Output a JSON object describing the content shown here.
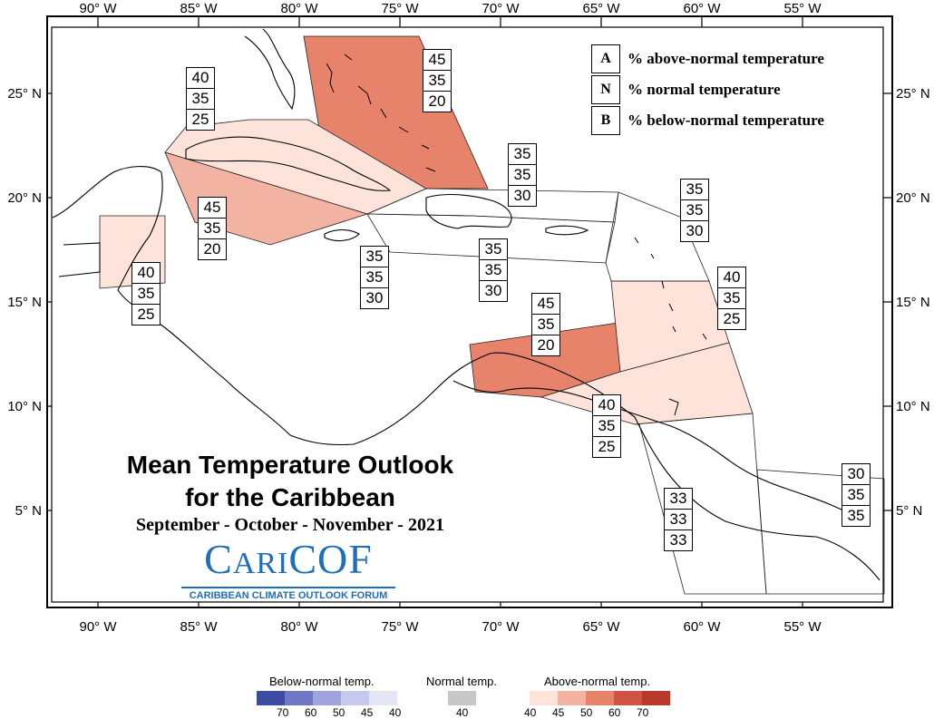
{
  "map": {
    "title_line1": "Mean Temperature Outlook",
    "title_line2": "for the Caribbean",
    "subtitle": "September - October - November - 2021",
    "logo_main_a": "C",
    "logo_main_b": "ARI",
    "logo_main_c": "COF",
    "logo_sub": "CARIBBEAN CLIMATE OUTLOOK FORUM",
    "lon_labels": [
      "90° W",
      "85° W",
      "80° W",
      "75° W",
      "70° W",
      "65° W",
      "60° W",
      "55° W"
    ],
    "lat_labels": [
      "25° N",
      "20° N",
      "15° N",
      "10° N",
      "5° N"
    ],
    "key": [
      {
        "letter": "A",
        "text": "% above-normal temperature"
      },
      {
        "letter": "N",
        "text": "% normal temperature"
      },
      {
        "letter": "B",
        "text": "% below-normal temperature"
      }
    ],
    "region_labels": [
      {
        "id": "northwest-bahamas-cuba",
        "values": [
          "40",
          "35",
          "25"
        ]
      },
      {
        "id": "bahamas-turks",
        "values": [
          "45",
          "35",
          "20"
        ]
      },
      {
        "id": "cayman-jamaica-west",
        "values": [
          "45",
          "35",
          "20"
        ]
      },
      {
        "id": "belize",
        "values": [
          "40",
          "35",
          "25"
        ]
      },
      {
        "id": "jamaica",
        "values": [
          "35",
          "35",
          "30"
        ]
      },
      {
        "id": "hispaniola-north",
        "values": [
          "35",
          "35",
          "30"
        ]
      },
      {
        "id": "hispaniola-south",
        "values": [
          "35",
          "35",
          "30"
        ]
      },
      {
        "id": "leeward-islands",
        "values": [
          "35",
          "35",
          "30"
        ]
      },
      {
        "id": "windward-islands",
        "values": [
          "40",
          "35",
          "25"
        ]
      },
      {
        "id": "abc-islands",
        "values": [
          "45",
          "35",
          "20"
        ]
      },
      {
        "id": "trinidad-tobago",
        "values": [
          "40",
          "35",
          "25"
        ]
      },
      {
        "id": "guyana",
        "values": [
          "33",
          "33",
          "33"
        ]
      },
      {
        "id": "suriname-french-guiana",
        "values": [
          "30",
          "35",
          "35"
        ]
      }
    ],
    "colors": {
      "above_40": "#fde3da",
      "above_45": "#f3b3a2",
      "above_50": "#e8836b",
      "above_60": "#cf5443",
      "above_70": "#b83a2a",
      "normal": "#c8c8c8",
      "below_40": "#e4e6f4",
      "below_45": "#c6c9ec",
      "below_50": "#9fa4dc",
      "below_60": "#7078c6",
      "below_70": "#3e4ba3"
    }
  },
  "colorbar": {
    "below_title": "Below-normal temp.",
    "normal_title": "Normal temp.",
    "above_title": "Above-normal temp.",
    "below_labels": [
      "70",
      "60",
      "50",
      "45",
      "40"
    ],
    "normal_label": "40",
    "above_labels": [
      "40",
      "45",
      "50",
      "60",
      "70"
    ]
  }
}
